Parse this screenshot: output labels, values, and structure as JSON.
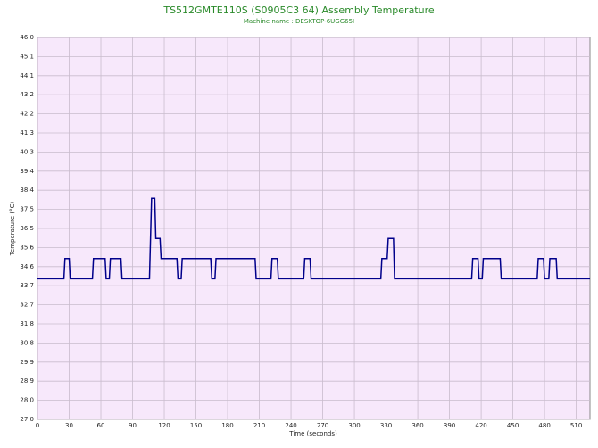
{
  "chart_data": {
    "type": "line",
    "title": "TS512GMTE110S (S0905C3 64) Assembly Temperature",
    "subtitle": "Machine name : DESKTOP-6UGG65I",
    "xlabel": "Time (seconds)",
    "ylabel": "Temperature (°C)",
    "xlim": [
      0,
      523
    ],
    "xticks": [
      0,
      30,
      60,
      90,
      120,
      150,
      180,
      210,
      240,
      270,
      300,
      330,
      360,
      390,
      420,
      450,
      480,
      510
    ],
    "ylim": [
      27,
      46
    ],
    "yticks": [
      {
        "value": 27,
        "label": "27.0"
      },
      {
        "value": 27.95,
        "label": "28.0"
      },
      {
        "value": 28.9,
        "label": "28.9"
      },
      {
        "value": 29.85,
        "label": "29.9"
      },
      {
        "value": 30.8,
        "label": "30.8"
      },
      {
        "value": 31.75,
        "label": "31.8"
      },
      {
        "value": 32.7,
        "label": "32.7"
      },
      {
        "value": 33.65,
        "label": "33.7"
      },
      {
        "value": 34.6,
        "label": "34.6"
      },
      {
        "value": 35.55,
        "label": "35.6"
      },
      {
        "value": 36.5,
        "label": "36.5"
      },
      {
        "value": 37.45,
        "label": "37.5"
      },
      {
        "value": 38.4,
        "label": "38.4"
      },
      {
        "value": 39.35,
        "label": "39.4"
      },
      {
        "value": 40.3,
        "label": "40.3"
      },
      {
        "value": 41.25,
        "label": "41.3"
      },
      {
        "value": 42.2,
        "label": "42.2"
      },
      {
        "value": 43.15,
        "label": "43.2"
      },
      {
        "value": 44.1,
        "label": "44.1"
      },
      {
        "value": 45.05,
        "label": "45.1"
      },
      {
        "value": 46,
        "label": "46.0"
      }
    ],
    "grid": true,
    "series": [
      {
        "color": "#00008b",
        "x": [
          0,
          25,
          26,
          30,
          31,
          52,
          53,
          64,
          65,
          68,
          69,
          79,
          80,
          106,
          107,
          108,
          111,
          112,
          116,
          117,
          132,
          133,
          136,
          137,
          164,
          165,
          168,
          169,
          206,
          207,
          221,
          222,
          227,
          228,
          252,
          253,
          258,
          259,
          325,
          326,
          331,
          332,
          337,
          338,
          411,
          412,
          417,
          418,
          421,
          422,
          438,
          439,
          473,
          474,
          479,
          480,
          484,
          485,
          491,
          492,
          523
        ],
        "values": [
          34,
          34,
          35,
          35,
          34,
          34,
          35,
          35,
          34,
          34,
          35,
          35,
          34,
          34,
          36,
          38,
          38,
          36,
          36,
          35,
          35,
          34,
          34,
          35,
          35,
          34,
          34,
          35,
          35,
          34,
          34,
          35,
          35,
          34,
          34,
          35,
          35,
          34,
          34,
          35,
          35,
          36,
          36,
          34,
          34,
          35,
          35,
          34,
          34,
          35,
          35,
          34,
          34,
          35,
          35,
          34,
          34,
          35,
          35,
          34,
          34
        ]
      }
    ]
  }
}
